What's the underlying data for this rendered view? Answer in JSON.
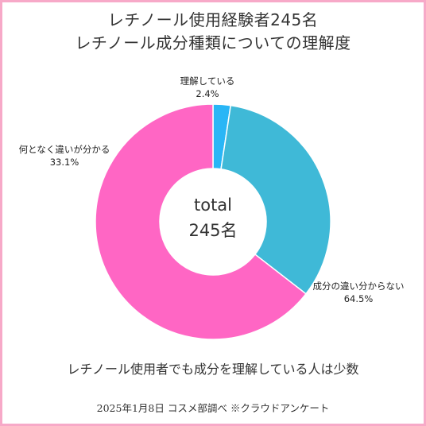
{
  "header": {
    "title_line1": "レチノール使用経験者245名",
    "title_line2": "レチノール成分種類についての理解度"
  },
  "center": {
    "label": "total",
    "value": "245名"
  },
  "caption": "レチノール使用者でも成分を理解している人は少数",
  "footer": "2025年1月8日 コスメ部調べ ※クラウドアンケート",
  "chart_data": {
    "type": "pie",
    "style": "donut",
    "categories": [
      "理解している",
      "何となく違いが分かる",
      "成分の違い分からない"
    ],
    "values": [
      2.4,
      33.1,
      64.5
    ],
    "value_labels": [
      "2.4%",
      "33.1%",
      "64.5%"
    ],
    "colors": [
      "#29b6f6",
      "#3fb9d7",
      "#ff66c4"
    ],
    "title": "レチノール使用経験者245名 レチノール成分種類についての理解度"
  }
}
